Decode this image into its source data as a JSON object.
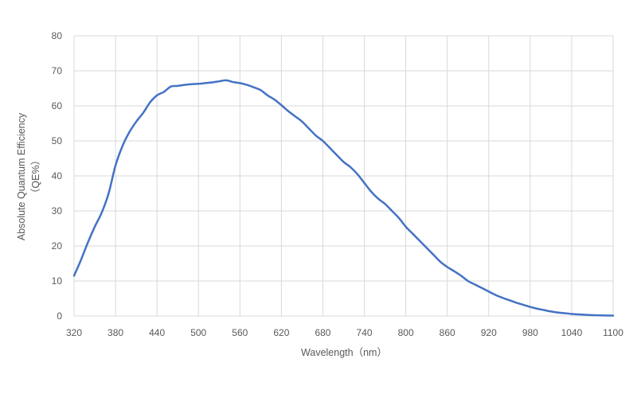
{
  "chart_data": {
    "type": "line",
    "title": "",
    "xlabel": "Wavelength（nm）",
    "ylabel": "Absolute Quantum Efficiency",
    "ylabel_unit": "（QE%）",
    "xlim": [
      320,
      1100
    ],
    "ylim": [
      0,
      80
    ],
    "x_ticks": [
      320,
      380,
      440,
      500,
      560,
      620,
      680,
      740,
      800,
      860,
      920,
      980,
      1040,
      1100
    ],
    "y_ticks": [
      0,
      10,
      20,
      30,
      40,
      50,
      60,
      70,
      80
    ],
    "grid": true,
    "legend": "none",
    "line_color": "#4472c4",
    "series": [
      {
        "x": [
          320,
          330,
          340,
          350,
          360,
          370,
          380,
          390,
          400,
          410,
          420,
          430,
          440,
          450,
          460,
          470,
          480,
          490,
          500,
          510,
          520,
          530,
          540,
          550,
          560,
          570,
          580,
          590,
          600,
          610,
          620,
          630,
          640,
          650,
          660,
          670,
          680,
          690,
          700,
          710,
          720,
          730,
          740,
          750,
          760,
          770,
          780,
          790,
          800,
          810,
          820,
          830,
          840,
          850,
          860,
          870,
          880,
          890,
          900,
          910,
          920,
          930,
          940,
          950,
          960,
          970,
          980,
          990,
          1000,
          1010,
          1020,
          1030,
          1040,
          1050,
          1060,
          1070,
          1080,
          1090,
          1100
        ],
        "values": [
          11.5,
          16,
          21,
          25.5,
          29.5,
          35,
          43,
          48.5,
          52.5,
          55.5,
          58,
          61,
          63,
          64,
          65.5,
          65.7,
          66,
          66.2,
          66.3,
          66.5,
          66.7,
          67,
          67.3,
          66.8,
          66.5,
          66,
          65.3,
          64.5,
          63,
          61.8,
          60.2,
          58.5,
          57,
          55.5,
          53.5,
          51.5,
          50,
          48,
          46,
          44,
          42.5,
          40.5,
          38,
          35.5,
          33.5,
          32,
          30,
          28,
          25.5,
          23.5,
          21.5,
          19.5,
          17.5,
          15.5,
          14,
          12.8,
          11.5,
          10,
          9,
          8,
          7,
          6,
          5.2,
          4.5,
          3.8,
          3.2,
          2.6,
          2.1,
          1.7,
          1.3,
          1,
          0.8,
          0.6,
          0.45,
          0.35,
          0.25,
          0.2,
          0.15,
          0.1
        ]
      }
    ]
  }
}
